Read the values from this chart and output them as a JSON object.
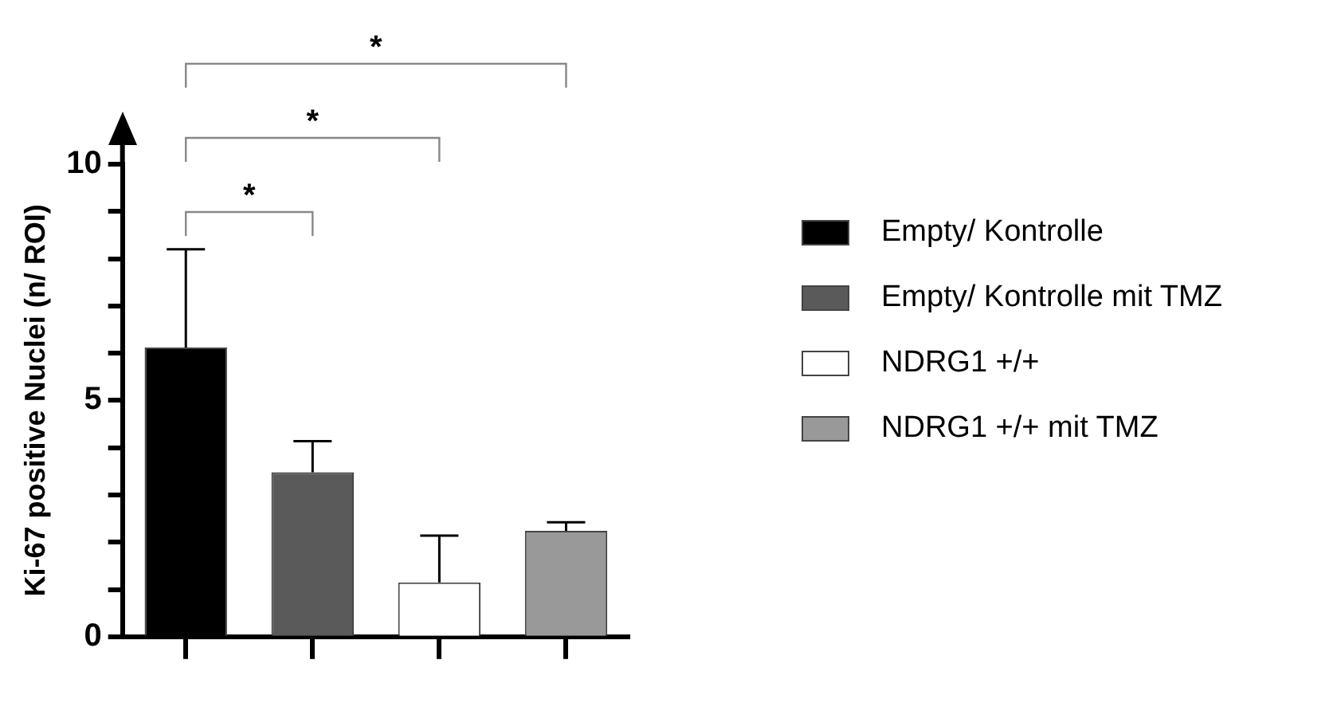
{
  "chart_data": {
    "type": "bar",
    "ylabel": "Ki-67 positive Nuclei (n/ ROI)",
    "categories": [
      null,
      null,
      null,
      null
    ],
    "series": [
      {
        "name": "Empty/ Kontrolle",
        "color": "#000000",
        "values": [
          6.12,
          null,
          null,
          null
        ],
        "errors": [
          2.08,
          null,
          null,
          null
        ]
      },
      {
        "name": "Empty/ Kontrolle mit TMZ",
        "color": "#5a5a5a",
        "values": [
          null,
          3.48,
          null,
          null
        ],
        "errors": [
          null,
          0.66,
          null,
          null
        ]
      },
      {
        "name": "NDRG1 +/+",
        "color": "#ffffff",
        "values": [
          null,
          null,
          1.15,
          null
        ],
        "errors": [
          null,
          null,
          0.99,
          null
        ]
      },
      {
        "name": "NDRG1 +/+ mit TMZ",
        "color": "#999999",
        "values": [
          null,
          null,
          null,
          2.24
        ],
        "errors": [
          null,
          null,
          null,
          0.18
        ]
      }
    ],
    "ylim": [
      0,
      10
    ],
    "yticks": [
      0,
      {
        "value": 1,
        "label": null
      },
      {
        "value": 2,
        "label": null
      },
      {
        "value": 3,
        "label": null
      },
      {
        "value": 4,
        "label": null
      },
      5,
      {
        "value": 6,
        "label": null
      },
      {
        "value": 7,
        "label": null
      },
      {
        "value": 8,
        "label": null
      },
      {
        "value": 9,
        "label": null
      },
      10
    ],
    "annotations": [
      "*",
      "*",
      "*"
    ],
    "grid": false,
    "legend": "right"
  }
}
